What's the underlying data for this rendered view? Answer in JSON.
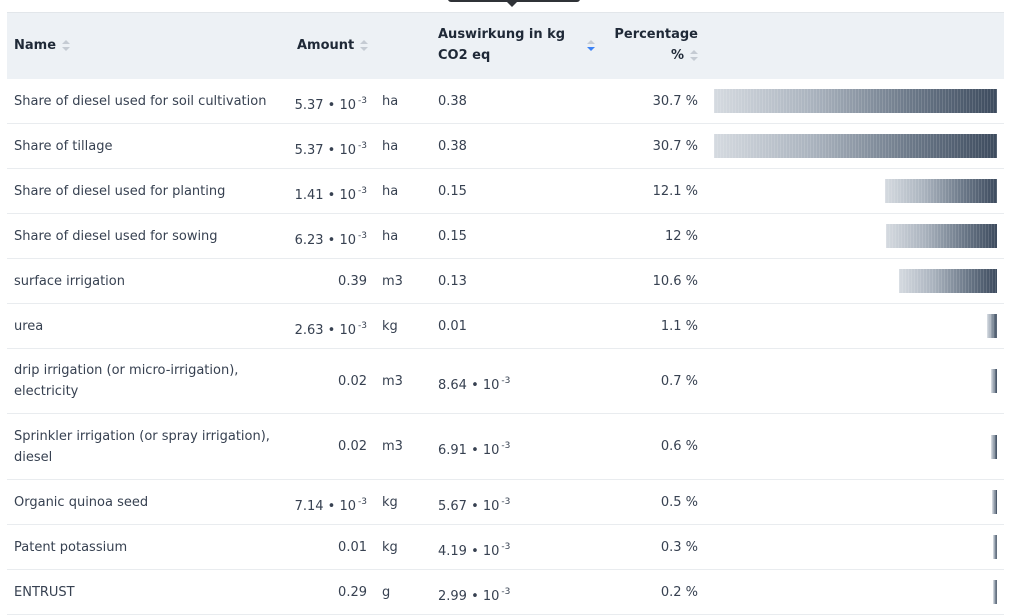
{
  "header": {
    "name": "Name",
    "amount": "Amount",
    "impact_line1": "Auswirkung in kg",
    "impact_line2": "CO2 eq",
    "percentage_line1": "Percentage",
    "percentage_line2": "%"
  },
  "rows": [
    {
      "name": "Share of diesel used for soil cultivation",
      "amount": "5.37 • 10",
      "amount_exp": "-3",
      "unit": "ha",
      "impact": "0.38",
      "impact_exp": "",
      "percentage": "30.7 %",
      "share": 30.7
    },
    {
      "name": "Share of tillage",
      "amount": "5.37 • 10",
      "amount_exp": "-3",
      "unit": "ha",
      "impact": "0.38",
      "impact_exp": "",
      "percentage": "30.7 %",
      "share": 30.7
    },
    {
      "name": "Share of diesel used for planting",
      "amount": "1.41 • 10",
      "amount_exp": "-3",
      "unit": "ha",
      "impact": "0.15",
      "impact_exp": "",
      "percentage": "12.1 %",
      "share": 12.1
    },
    {
      "name": "Share of diesel used for sowing",
      "amount": "6.23 • 10",
      "amount_exp": "-3",
      "unit": "ha",
      "impact": "0.15",
      "impact_exp": "",
      "percentage": "12 %",
      "share": 12.0
    },
    {
      "name": "surface irrigation",
      "amount": "0.39",
      "amount_exp": "",
      "unit": "m3",
      "impact": "0.13",
      "impact_exp": "",
      "percentage": "10.6 %",
      "share": 10.6
    },
    {
      "name": "urea",
      "amount": "2.63 • 10",
      "amount_exp": "-3",
      "unit": "kg",
      "impact": "0.01",
      "impact_exp": "",
      "percentage": "1.1 %",
      "share": 1.1
    },
    {
      "name": "drip irrigation (or micro-irrigation),",
      "name2": "electricity",
      "amount": "0.02",
      "amount_exp": "",
      "unit": "m3",
      "impact": "8.64 • 10",
      "impact_exp": "-3",
      "percentage": "0.7 %",
      "share": 0.7
    },
    {
      "name": "Sprinkler irrigation (or spray irrigation),",
      "name2": "diesel",
      "amount": "0.02",
      "amount_exp": "",
      "unit": "m3",
      "impact": "6.91 • 10",
      "impact_exp": "-3",
      "percentage": "0.6 %",
      "share": 0.6
    },
    {
      "name": "Organic quinoa seed",
      "amount": "7.14 • 10",
      "amount_exp": "-3",
      "unit": "kg",
      "impact": "5.67 • 10",
      "impact_exp": "-3",
      "percentage": "0.5 %",
      "share": 0.5
    },
    {
      "name": "Patent potassium",
      "amount": "0.01",
      "amount_exp": "",
      "unit": "kg",
      "impact": "4.19 • 10",
      "impact_exp": "-3",
      "percentage": "0.3 %",
      "share": 0.3
    },
    {
      "name": "ENTRUST",
      "amount": "0.29",
      "amount_exp": "",
      "unit": "g",
      "impact": "2.99 • 10",
      "impact_exp": "-3",
      "percentage": "0.2 %",
      "share": 0.2
    }
  ]
}
